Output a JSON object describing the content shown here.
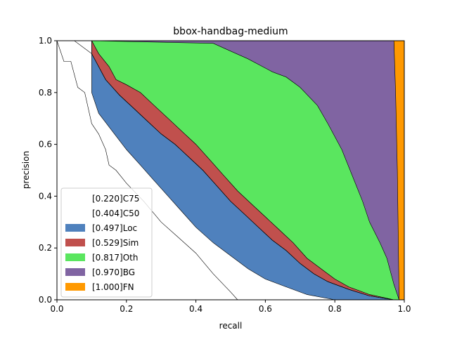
{
  "chart_data": {
    "type": "area",
    "title": "bbox-handbag-medium",
    "xlabel": "recall",
    "ylabel": "precision",
    "xlim": [
      0,
      1
    ],
    "ylim": [
      0,
      1
    ],
    "x_ticks": [
      "0.0",
      "0.2",
      "0.4",
      "0.6",
      "0.8",
      "1.0"
    ],
    "y_ticks": [
      "0.0",
      "0.2",
      "0.4",
      "0.6",
      "0.8",
      "1.0"
    ],
    "grid": false,
    "legend_position": "lower-left",
    "series": [
      {
        "name": "[1.000]FN",
        "color": "#ff9900",
        "fill": true,
        "points": [
          [
            0.97,
            1.0
          ],
          [
            1.0,
            1.0
          ],
          [
            1.0,
            0.0
          ],
          [
            0.985,
            0.0
          ]
        ]
      },
      {
        "name": "[0.970]BG",
        "color": "#8064a2",
        "fill": true,
        "points": [
          [
            0.1,
            1.0
          ],
          [
            0.97,
            1.0
          ],
          [
            0.975,
            0.8
          ],
          [
            0.98,
            0.5
          ],
          [
            0.985,
            0.0
          ],
          [
            0.97,
            0.0
          ],
          [
            0.9,
            0.08
          ],
          [
            0.8,
            0.2
          ],
          [
            0.7,
            0.33
          ],
          [
            0.6,
            0.45
          ],
          [
            0.5,
            0.55
          ],
          [
            0.4,
            0.65
          ],
          [
            0.3,
            0.75
          ],
          [
            0.2,
            0.85
          ],
          [
            0.15,
            0.9
          ],
          [
            0.1,
            1.0
          ]
        ]
      },
      {
        "name": "[0.817]Oth",
        "color": "#5ae65f",
        "fill": true,
        "points": [
          [
            0.1,
            1.0
          ],
          [
            0.45,
            0.99
          ],
          [
            0.5,
            0.96
          ],
          [
            0.55,
            0.93
          ],
          [
            0.62,
            0.88
          ],
          [
            0.66,
            0.86
          ],
          [
            0.7,
            0.82
          ],
          [
            0.75,
            0.75
          ],
          [
            0.78,
            0.68
          ],
          [
            0.82,
            0.58
          ],
          [
            0.85,
            0.48
          ],
          [
            0.88,
            0.38
          ],
          [
            0.9,
            0.3
          ],
          [
            0.93,
            0.22
          ],
          [
            0.95,
            0.16
          ],
          [
            0.97,
            0.06
          ],
          [
            0.985,
            0.0
          ],
          [
            0.97,
            0.0
          ],
          [
            0.9,
            0.02
          ],
          [
            0.84,
            0.05
          ],
          [
            0.8,
            0.08
          ],
          [
            0.76,
            0.12
          ],
          [
            0.72,
            0.16
          ],
          [
            0.68,
            0.22
          ],
          [
            0.64,
            0.27
          ],
          [
            0.6,
            0.32
          ],
          [
            0.56,
            0.37
          ],
          [
            0.52,
            0.42
          ],
          [
            0.48,
            0.48
          ],
          [
            0.44,
            0.54
          ],
          [
            0.4,
            0.6
          ],
          [
            0.36,
            0.65
          ],
          [
            0.32,
            0.7
          ],
          [
            0.28,
            0.75
          ],
          [
            0.24,
            0.8
          ],
          [
            0.2,
            0.83
          ],
          [
            0.17,
            0.85
          ],
          [
            0.15,
            0.9
          ],
          [
            0.12,
            0.95
          ],
          [
            0.1,
            1.0
          ]
        ]
      },
      {
        "name": "[0.529]Sim",
        "color": "#c0504d",
        "fill": true,
        "points": [
          [
            0.1,
            1.0
          ],
          [
            0.12,
            0.95
          ],
          [
            0.15,
            0.9
          ],
          [
            0.17,
            0.85
          ],
          [
            0.2,
            0.83
          ],
          [
            0.24,
            0.8
          ],
          [
            0.28,
            0.75
          ],
          [
            0.32,
            0.7
          ],
          [
            0.36,
            0.65
          ],
          [
            0.4,
            0.6
          ],
          [
            0.44,
            0.54
          ],
          [
            0.48,
            0.48
          ],
          [
            0.52,
            0.42
          ],
          [
            0.56,
            0.37
          ],
          [
            0.6,
            0.32
          ],
          [
            0.64,
            0.27
          ],
          [
            0.68,
            0.22
          ],
          [
            0.72,
            0.16
          ],
          [
            0.76,
            0.12
          ],
          [
            0.8,
            0.08
          ],
          [
            0.84,
            0.05
          ],
          [
            0.9,
            0.02
          ],
          [
            0.97,
            0.0
          ],
          [
            0.9,
            0.015
          ],
          [
            0.84,
            0.04
          ],
          [
            0.78,
            0.07
          ],
          [
            0.74,
            0.1
          ],
          [
            0.7,
            0.14
          ],
          [
            0.66,
            0.19
          ],
          [
            0.62,
            0.23
          ],
          [
            0.58,
            0.28
          ],
          [
            0.54,
            0.33
          ],
          [
            0.5,
            0.38
          ],
          [
            0.46,
            0.44
          ],
          [
            0.42,
            0.5
          ],
          [
            0.38,
            0.55
          ],
          [
            0.34,
            0.6
          ],
          [
            0.3,
            0.64
          ],
          [
            0.26,
            0.69
          ],
          [
            0.22,
            0.74
          ],
          [
            0.18,
            0.79
          ],
          [
            0.14,
            0.85
          ],
          [
            0.12,
            0.9
          ],
          [
            0.1,
            0.95
          ],
          [
            0.1,
            1.0
          ]
        ]
      },
      {
        "name": "[0.497]Loc",
        "color": "#4f81bd",
        "fill": true,
        "points": [
          [
            0.1,
            1.0
          ],
          [
            0.1,
            0.95
          ],
          [
            0.12,
            0.9
          ],
          [
            0.14,
            0.85
          ],
          [
            0.18,
            0.79
          ],
          [
            0.22,
            0.74
          ],
          [
            0.26,
            0.69
          ],
          [
            0.3,
            0.64
          ],
          [
            0.34,
            0.6
          ],
          [
            0.38,
            0.55
          ],
          [
            0.42,
            0.5
          ],
          [
            0.46,
            0.44
          ],
          [
            0.5,
            0.38
          ],
          [
            0.54,
            0.33
          ],
          [
            0.58,
            0.28
          ],
          [
            0.62,
            0.23
          ],
          [
            0.66,
            0.19
          ],
          [
            0.7,
            0.14
          ],
          [
            0.74,
            0.1
          ],
          [
            0.78,
            0.07
          ],
          [
            0.84,
            0.04
          ],
          [
            0.9,
            0.015
          ],
          [
            0.97,
            0.0
          ],
          [
            0.8,
            0.0
          ],
          [
            0.72,
            0.02
          ],
          [
            0.66,
            0.05
          ],
          [
            0.6,
            0.08
          ],
          [
            0.55,
            0.12
          ],
          [
            0.5,
            0.17
          ],
          [
            0.45,
            0.22
          ],
          [
            0.4,
            0.28
          ],
          [
            0.36,
            0.34
          ],
          [
            0.32,
            0.4
          ],
          [
            0.28,
            0.46
          ],
          [
            0.24,
            0.52
          ],
          [
            0.2,
            0.58
          ],
          [
            0.16,
            0.65
          ],
          [
            0.12,
            0.72
          ],
          [
            0.1,
            0.8
          ],
          [
            0.1,
            1.0
          ]
        ]
      }
    ],
    "reference_lines": [
      {
        "name": "[0.220]C75",
        "points": [
          [
            0.0,
            1.0
          ],
          [
            0.02,
            0.92
          ],
          [
            0.04,
            0.92
          ],
          [
            0.06,
            0.82
          ],
          [
            0.08,
            0.8
          ],
          [
            0.1,
            0.68
          ],
          [
            0.12,
            0.64
          ],
          [
            0.14,
            0.58
          ],
          [
            0.15,
            0.52
          ],
          [
            0.17,
            0.5
          ],
          [
            0.2,
            0.45
          ],
          [
            0.25,
            0.38
          ],
          [
            0.3,
            0.3
          ],
          [
            0.35,
            0.24
          ],
          [
            0.4,
            0.18
          ],
          [
            0.45,
            0.1
          ],
          [
            0.5,
            0.03
          ],
          [
            0.52,
            0.0
          ]
        ]
      },
      {
        "name": "[0.404]C50",
        "points": [
          [
            0.0,
            1.0
          ],
          [
            0.05,
            1.0
          ],
          [
            0.1,
            0.95
          ],
          [
            0.12,
            0.9
          ],
          [
            0.14,
            0.85
          ],
          [
            0.18,
            0.79
          ],
          [
            0.22,
            0.74
          ],
          [
            0.26,
            0.69
          ],
          [
            0.3,
            0.64
          ],
          [
            0.34,
            0.6
          ],
          [
            0.38,
            0.55
          ],
          [
            0.42,
            0.5
          ],
          [
            0.46,
            0.44
          ],
          [
            0.5,
            0.38
          ],
          [
            0.54,
            0.33
          ],
          [
            0.58,
            0.28
          ],
          [
            0.62,
            0.23
          ],
          [
            0.66,
            0.19
          ],
          [
            0.7,
            0.14
          ],
          [
            0.74,
            0.1
          ],
          [
            0.78,
            0.07
          ],
          [
            0.84,
            0.04
          ],
          [
            0.9,
            0.015
          ],
          [
            0.97,
            0.0
          ]
        ]
      }
    ],
    "legend_entries": [
      {
        "label": "[0.220]C75",
        "color": "#ffffff"
      },
      {
        "label": "[0.404]C50",
        "color": "#ffffff"
      },
      {
        "label": "[0.497]Loc",
        "color": "#4f81bd"
      },
      {
        "label": "[0.529]Sim",
        "color": "#c0504d"
      },
      {
        "label": "[0.817]Oth",
        "color": "#5ae65f"
      },
      {
        "label": "[0.970]BG",
        "color": "#8064a2"
      },
      {
        "label": "[1.000]FN",
        "color": "#ff9900"
      }
    ]
  }
}
